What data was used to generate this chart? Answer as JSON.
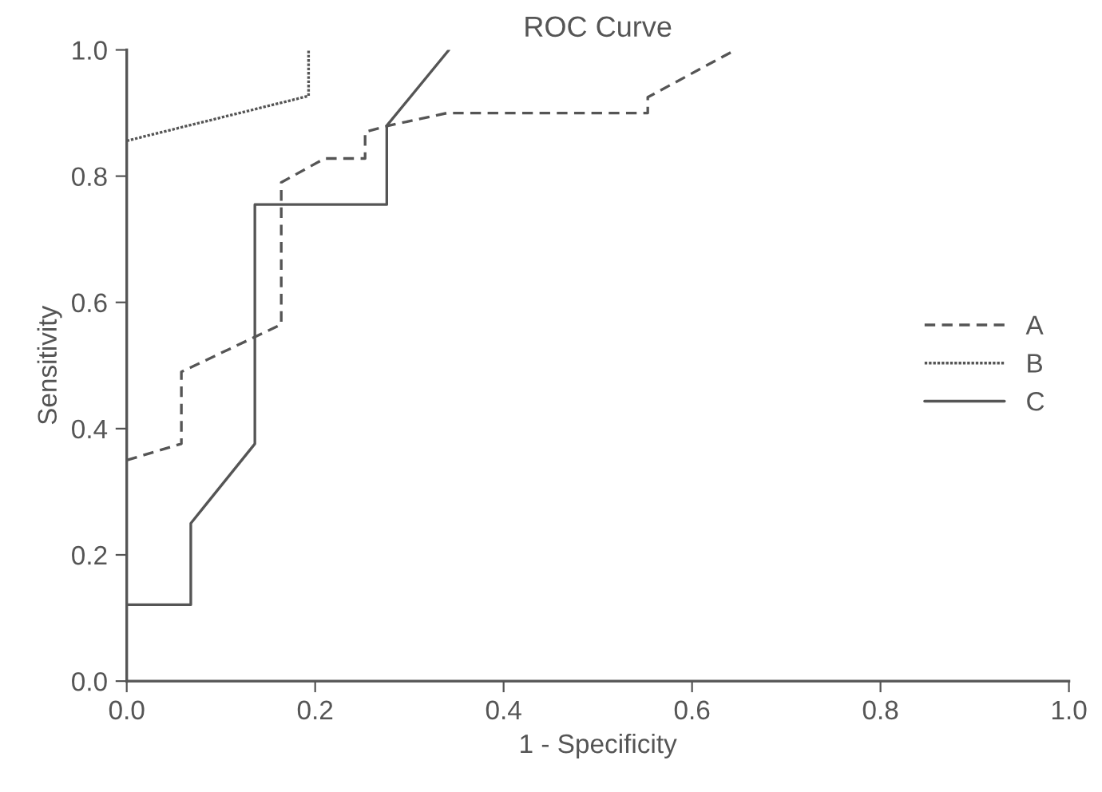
{
  "chart_data": {
    "type": "line",
    "title": "ROC Curve",
    "xlabel": "1 - Specificity",
    "ylabel": "Sensitivity",
    "xlim": [
      0,
      1
    ],
    "ylim": [
      0,
      1
    ],
    "xticks": [
      {
        "value": 0,
        "label": "0.0"
      },
      {
        "value": 0.2,
        "label": "0.2"
      },
      {
        "value": 0.4,
        "label": "0.4"
      },
      {
        "value": 0.6,
        "label": "0.6"
      },
      {
        "value": 0.8,
        "label": "0.8"
      },
      {
        "value": 1,
        "label": "1.0"
      }
    ],
    "yticks": [
      {
        "value": 0,
        "label": "0.0"
      },
      {
        "value": 0.2,
        "label": "0.2"
      },
      {
        "value": 0.4,
        "label": "0.4"
      },
      {
        "value": 0.6,
        "label": "0.6"
      },
      {
        "value": 0.8,
        "label": "0.8"
      },
      {
        "value": 1,
        "label": "1.0"
      }
    ],
    "grid": false,
    "legend": "right",
    "series": [
      {
        "name": "A",
        "color": "#555555",
        "line_style": "dashed",
        "x": [
          0,
          0.058,
          0.058,
          0.164,
          0.164,
          0.21,
          0.253,
          0.253,
          0.278,
          0.34,
          0.553,
          0.553,
          0.646
        ],
        "values": [
          0.35,
          0.376,
          0.49,
          0.565,
          0.79,
          0.828,
          0.828,
          0.87,
          0.88,
          0.9,
          0.9,
          0.925,
          1.0
        ]
      },
      {
        "name": "B",
        "color": "#555555",
        "line_style": "dotted",
        "x": [
          0,
          0.193,
          0.193
        ],
        "values": [
          0.856,
          0.927,
          1.0
        ]
      },
      {
        "name": "C",
        "color": "#555555",
        "line_style": "solid",
        "x": [
          0,
          0.068,
          0.068,
          0.136,
          0.136,
          0.276,
          0.276,
          0.342
        ],
        "values": [
          0.121,
          0.121,
          0.25,
          0.376,
          0.755,
          0.755,
          0.88,
          1.0
        ]
      }
    ]
  }
}
